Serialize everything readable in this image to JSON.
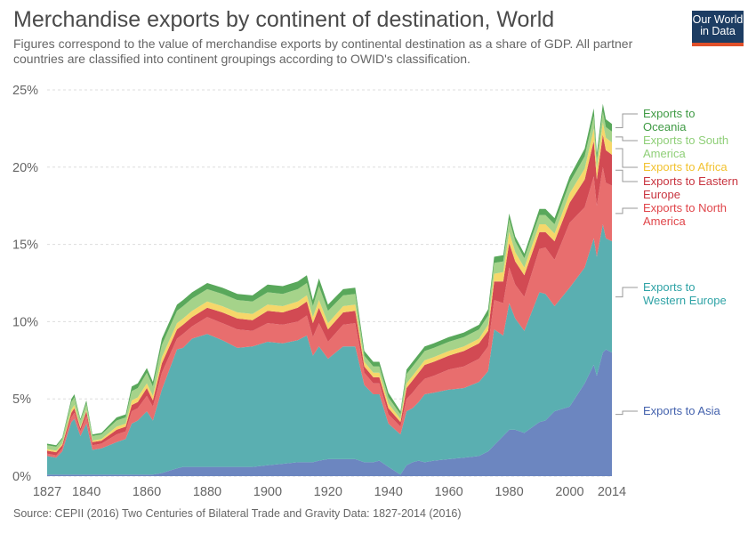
{
  "header": {
    "title": "Merchandise exports by continent of destination, World",
    "subtitle": "Figures correspond to the value of merchandise exports by continental destination as a share of GDP. All partner countries are classified into continent groupings according to OWID's classification.",
    "logo_line1": "Our World",
    "logo_line2": "in Data",
    "logo_colors": {
      "background": "#1d3d63",
      "bar": "#e0502a"
    }
  },
  "footer": {
    "source": "Source: CEPII (2016) Two Centuries of Bilateral Trade and Gravity Data: 1827-2014 (2016)"
  },
  "chart_data": {
    "type": "area",
    "stacked": true,
    "x": [
      1827,
      1830,
      1832,
      1835,
      1836,
      1838,
      1840,
      1842,
      1845,
      1850,
      1853,
      1855,
      1857,
      1860,
      1862,
      1865,
      1870,
      1872,
      1875,
      1880,
      1885,
      1890,
      1895,
      1900,
      1905,
      1910,
      1913,
      1915,
      1917,
      1920,
      1925,
      1929,
      1932,
      1935,
      1937,
      1940,
      1944,
      1946,
      1948,
      1950,
      1952,
      1955,
      1960,
      1965,
      1970,
      1973,
      1975,
      1978,
      1980,
      1982,
      1985,
      1990,
      1992,
      1995,
      2000,
      2005,
      2008,
      2009,
      2011,
      2012,
      2014
    ],
    "series": [
      {
        "name": "Exports to Asia",
        "color": "#6c86c0",
        "values": [
          0.1,
          0.1,
          0.1,
          0.1,
          0.1,
          0.1,
          0.1,
          0.1,
          0.1,
          0.1,
          0.1,
          0.1,
          0.1,
          0.1,
          0.1,
          0.2,
          0.5,
          0.6,
          0.6,
          0.6,
          0.6,
          0.6,
          0.6,
          0.7,
          0.8,
          0.9,
          0.9,
          0.9,
          1.0,
          1.1,
          1.1,
          1.1,
          0.9,
          0.9,
          1.0,
          0.6,
          0.1,
          0.7,
          0.9,
          1.0,
          0.9,
          1.0,
          1.1,
          1.2,
          1.3,
          1.6,
          2.0,
          2.6,
          3.0,
          3.0,
          2.8,
          3.5,
          3.6,
          4.2,
          4.5,
          6.0,
          7.2,
          6.5,
          8.0,
          8.2,
          8.0
        ]
      },
      {
        "name": "Exports to Western Europe",
        "color": "#5aafb1",
        "values": [
          1.2,
          1.1,
          1.5,
          3.4,
          3.6,
          2.5,
          3.3,
          1.6,
          1.7,
          2.1,
          2.3,
          3.3,
          3.5,
          4.1,
          3.5,
          5.4,
          7.7,
          7.7,
          8.3,
          8.6,
          8.2,
          7.7,
          7.8,
          8.0,
          7.8,
          7.9,
          8.2,
          6.9,
          7.4,
          6.5,
          7.3,
          7.3,
          5.0,
          4.4,
          4.3,
          2.8,
          2.6,
          3.5,
          3.5,
          3.8,
          4.4,
          4.4,
          4.5,
          4.5,
          4.8,
          5.2,
          7.5,
          6.5,
          8.2,
          7.2,
          6.6,
          8.4,
          8.2,
          6.8,
          7.7,
          7.5,
          8.2,
          7.7,
          8.3,
          7.2,
          7.2
        ]
      },
      {
        "name": "Exports to North America",
        "color": "#e86e6e",
        "values": [
          0.15,
          0.15,
          0.2,
          0.3,
          0.4,
          0.3,
          0.5,
          0.3,
          0.3,
          0.5,
          0.5,
          0.8,
          0.8,
          1.0,
          0.9,
          1.1,
          0.7,
          0.9,
          0.8,
          1.1,
          1.1,
          1.2,
          1.0,
          1.2,
          1.2,
          1.2,
          1.3,
          1.2,
          1.5,
          1.1,
          1.4,
          1.5,
          0.8,
          0.7,
          0.7,
          0.6,
          0.5,
          0.8,
          1.0,
          1.1,
          1.0,
          1.1,
          1.3,
          1.4,
          1.5,
          1.6,
          1.9,
          2.1,
          2.3,
          2.2,
          2.2,
          2.8,
          3.0,
          3.0,
          4.2,
          3.9,
          4.0,
          3.3,
          3.7,
          3.6,
          3.6
        ]
      },
      {
        "name": "Exports to Eastern Europe",
        "color": "#d24a53",
        "values": [
          0.2,
          0.2,
          0.2,
          0.3,
          0.3,
          0.2,
          0.3,
          0.2,
          0.2,
          0.3,
          0.3,
          0.4,
          0.4,
          0.5,
          0.4,
          0.6,
          0.6,
          0.6,
          0.6,
          0.6,
          0.7,
          0.7,
          0.7,
          0.8,
          0.8,
          0.9,
          0.9,
          0.9,
          1.0,
          0.8,
          0.8,
          0.8,
          0.4,
          0.4,
          0.4,
          0.4,
          0.3,
          0.7,
          0.8,
          0.8,
          0.9,
          0.9,
          0.9,
          1.0,
          1.0,
          1.0,
          1.2,
          1.4,
          1.6,
          1.5,
          1.4,
          1.1,
          1.0,
          1.2,
          1.3,
          1.8,
          2.3,
          1.7,
          2.1,
          2.1,
          2.0
        ]
      },
      {
        "name": "Exports to Africa",
        "color": "#f6d76a",
        "values": [
          0.1,
          0.1,
          0.1,
          0.2,
          0.2,
          0.1,
          0.1,
          0.1,
          0.1,
          0.2,
          0.2,
          0.3,
          0.3,
          0.3,
          0.3,
          0.4,
          0.4,
          0.4,
          0.4,
          0.4,
          0.4,
          0.4,
          0.4,
          0.4,
          0.4,
          0.4,
          0.4,
          0.4,
          0.5,
          0.4,
          0.4,
          0.4,
          0.3,
          0.3,
          0.3,
          0.3,
          0.2,
          0.3,
          0.3,
          0.3,
          0.3,
          0.3,
          0.3,
          0.3,
          0.3,
          0.4,
          0.5,
          0.6,
          0.7,
          0.6,
          0.5,
          0.5,
          0.5,
          0.5,
          0.6,
          0.7,
          0.8,
          0.7,
          0.8,
          0.8,
          0.8
        ]
      },
      {
        "name": "Exports to South America",
        "color": "#a5d38a",
        "values": [
          0.25,
          0.25,
          0.3,
          0.5,
          0.5,
          0.4,
          0.4,
          0.3,
          0.3,
          0.4,
          0.4,
          0.6,
          0.6,
          0.7,
          0.6,
          0.8,
          0.8,
          0.8,
          0.8,
          0.8,
          0.8,
          0.8,
          0.8,
          0.8,
          0.8,
          0.8,
          0.8,
          0.7,
          0.9,
          0.8,
          0.7,
          0.7,
          0.4,
          0.4,
          0.4,
          0.4,
          0.3,
          0.6,
          0.6,
          0.6,
          0.6,
          0.6,
          0.6,
          0.6,
          0.6,
          0.6,
          0.7,
          0.7,
          0.8,
          0.7,
          0.6,
          0.6,
          0.6,
          0.6,
          0.7,
          0.8,
          0.8,
          0.6,
          0.7,
          0.7,
          0.7
        ]
      },
      {
        "name": "Exports to Oceania",
        "color": "#59a85b",
        "values": [
          0.1,
          0.1,
          0.1,
          0.2,
          0.2,
          0.1,
          0.2,
          0.1,
          0.1,
          0.2,
          0.2,
          0.3,
          0.3,
          0.3,
          0.3,
          0.4,
          0.4,
          0.4,
          0.4,
          0.4,
          0.4,
          0.4,
          0.4,
          0.5,
          0.5,
          0.5,
          0.5,
          0.4,
          0.5,
          0.4,
          0.4,
          0.4,
          0.3,
          0.3,
          0.3,
          0.3,
          0.2,
          0.3,
          0.3,
          0.3,
          0.3,
          0.3,
          0.3,
          0.3,
          0.3,
          0.4,
          0.4,
          0.4,
          0.4,
          0.3,
          0.3,
          0.4,
          0.4,
          0.4,
          0.4,
          0.5,
          0.5,
          0.4,
          0.5,
          0.5,
          0.5
        ]
      }
    ],
    "y_ticks": [
      "0%",
      "5%",
      "10%",
      "15%",
      "20%",
      "25%"
    ],
    "x_ticks": [
      "1827",
      "1840",
      "1860",
      "1880",
      "1900",
      "1920",
      "1940",
      "1960",
      "1980",
      "2000",
      "2014"
    ],
    "ylim": [
      0,
      25
    ],
    "xlim": [
      1827,
      2014
    ],
    "legend": [
      {
        "label_lines": [
          "Exports to",
          "Oceania"
        ],
        "color": "#3f9a44"
      },
      {
        "label_lines": [
          "Exports to South",
          "America"
        ],
        "color": "#8fcf78"
      },
      {
        "label_lines": [
          "Exports to Africa"
        ],
        "color": "#f2c230"
      },
      {
        "label_lines": [
          "Exports to Eastern",
          "Europe"
        ],
        "color": "#c8343f"
      },
      {
        "label_lines": [
          "Exports to North",
          "America"
        ],
        "color": "#e0454a"
      },
      {
        "label_lines": [
          "Exports to",
          "Western Europe"
        ],
        "color": "#2fa3a6"
      },
      {
        "label_lines": [
          "Exports to Asia"
        ],
        "color": "#4462ad"
      }
    ],
    "legend_position": "right",
    "grid": true
  }
}
